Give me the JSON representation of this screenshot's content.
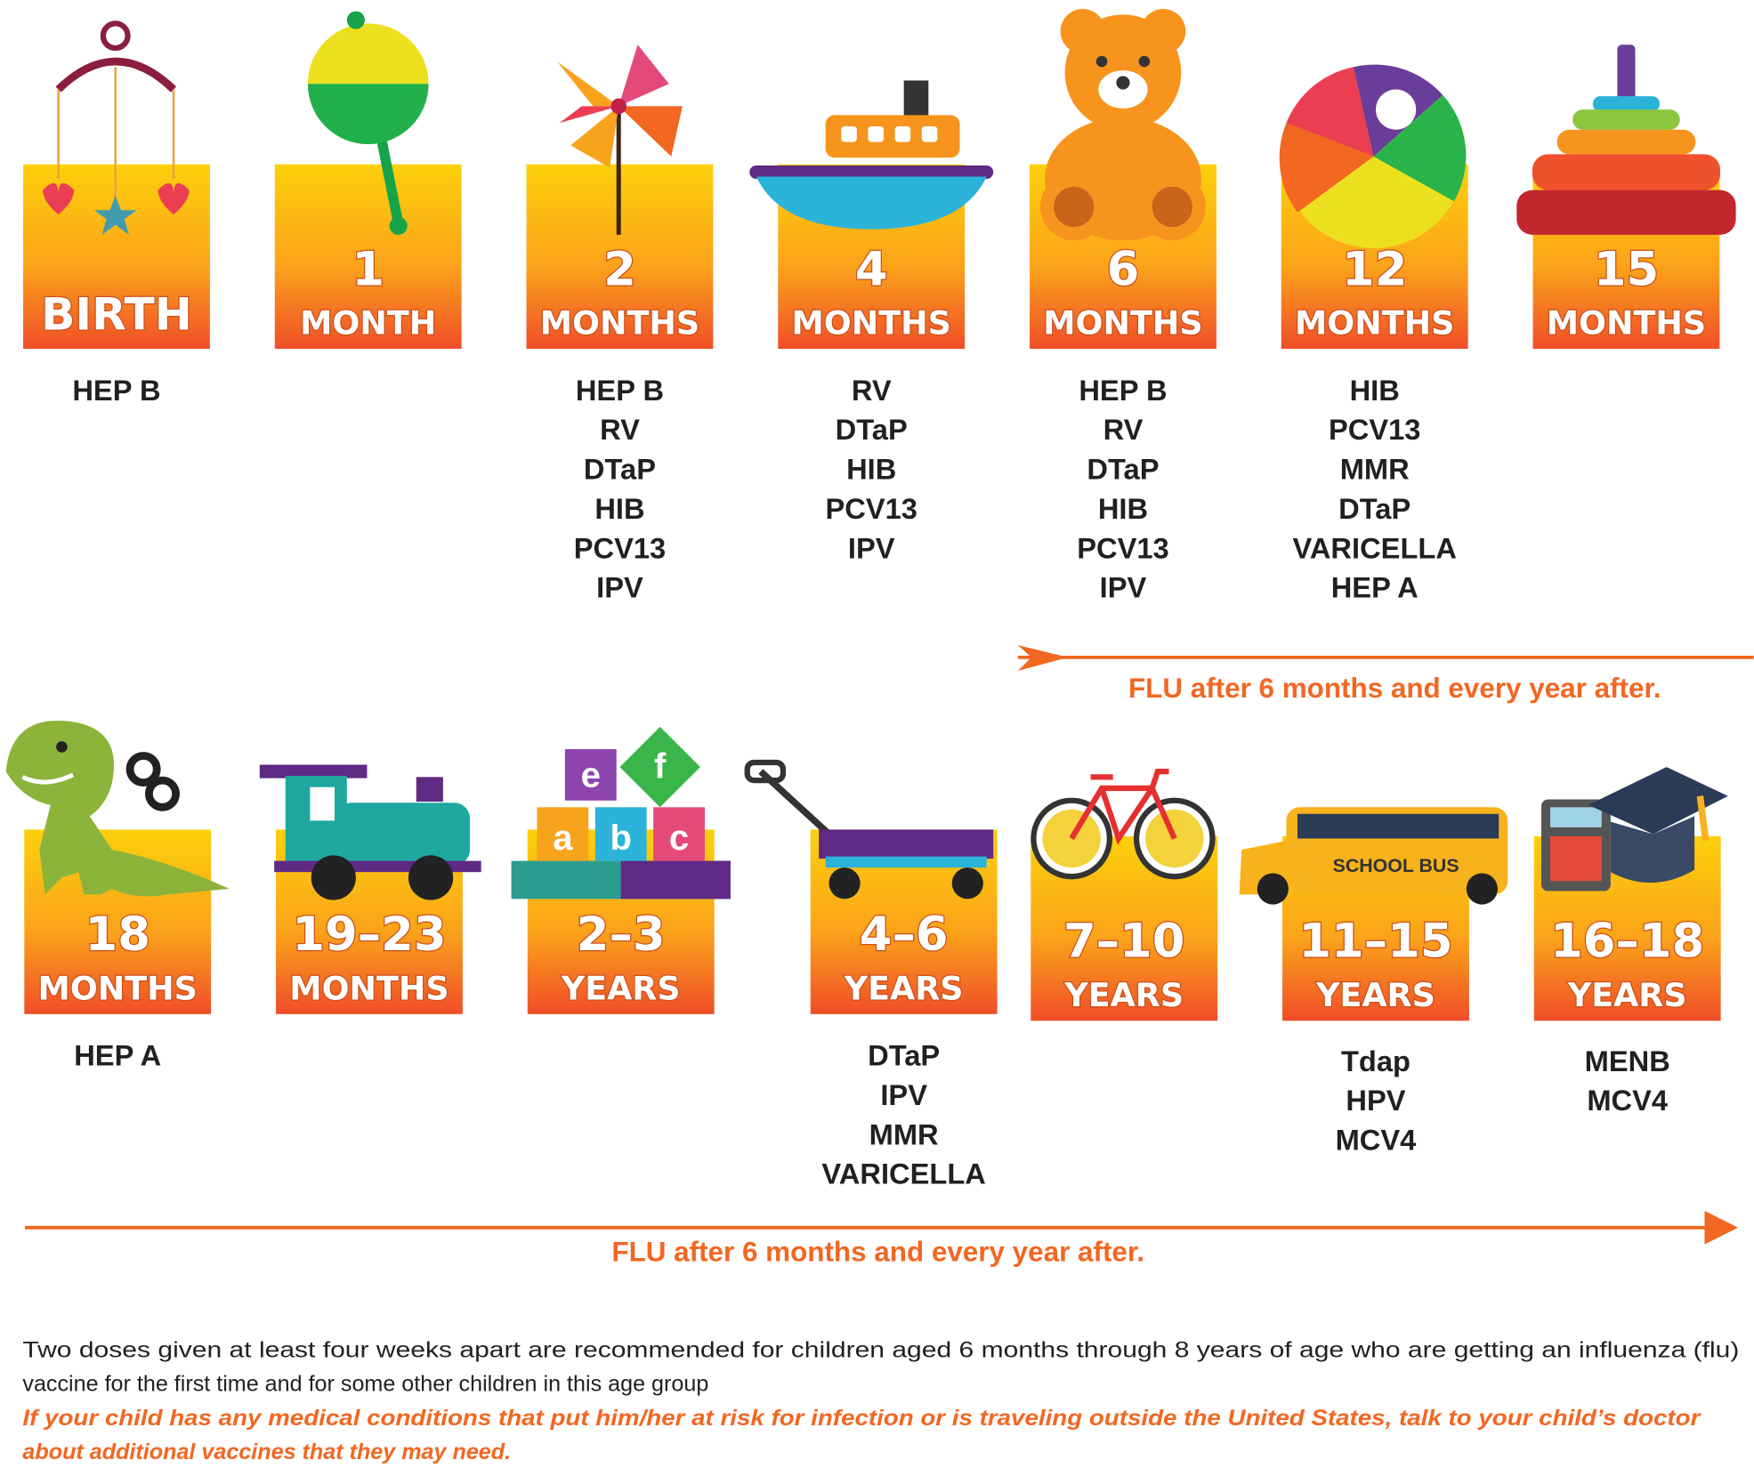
{
  "rows": [
    {
      "items": [
        {
          "age": [
            "BIRTH"
          ],
          "vaccines": [
            "HEP B"
          ]
        },
        {
          "age": [
            "1",
            "MONTH"
          ],
          "vaccines": []
        },
        {
          "age": [
            "2",
            "MONTHS"
          ],
          "vaccines": [
            "HEP B",
            "RV",
            "DTaP",
            "HIB",
            "PCV13",
            "IPV"
          ]
        },
        {
          "age": [
            "4",
            "MONTHS"
          ],
          "vaccines": [
            "RV",
            "DTaP",
            "HIB",
            "PCV13",
            "IPV"
          ]
        },
        {
          "age": [
            "6",
            "MONTHS"
          ],
          "vaccines": [
            "HEP B",
            "RV",
            "DTaP",
            "HIB",
            "PCV13",
            "IPV"
          ]
        },
        {
          "age": [
            "12",
            "MONTHS"
          ],
          "vaccines": [
            "HIB",
            "PCV13",
            "MMR",
            "DTaP",
            "VARICELLA",
            "HEP A"
          ]
        },
        {
          "age": [
            "15",
            "MONTHS"
          ],
          "vaccines": []
        }
      ]
    },
    {
      "items": [
        {
          "age": [
            "18",
            "MONTHS"
          ],
          "vaccines": [
            "HEP A"
          ]
        },
        {
          "age": [
            "19–23",
            "MONTHS"
          ],
          "vaccines": []
        },
        {
          "age": [
            "2–3",
            "YEARS"
          ],
          "vaccines": []
        },
        {
          "age": [
            "4–6",
            "YEARS"
          ],
          "vaccines": [
            "DTaP",
            "IPV",
            "MMR",
            "VARICELLA"
          ]
        },
        {
          "age": [
            "7–10",
            "YEARS"
          ],
          "vaccines": []
        },
        {
          "age": [
            "11–15",
            "YEARS"
          ],
          "vaccines": [
            "Tdap",
            "HPV",
            "MCV4"
          ]
        },
        {
          "age": [
            "16–18",
            "YEARS"
          ],
          "vaccines": [
            "MENB",
            "MCV4"
          ]
        }
      ]
    }
  ],
  "flu_notes": [
    "FLU after 6 months and every year after.",
    "FLU after 6 months and every year after."
  ],
  "icon_texts": {
    "blocks": [
      "e",
      "f",
      "a",
      "b",
      "c"
    ],
    "bus": "SCHOOL BUS"
  },
  "footnote": {
    "text": [
      "Two doses given at least four weeks apart are recommended for children aged 6 months through 8 years of age who are getting an influenza (flu)",
      "vaccine for the first time and for some other children in this age group"
    ],
    "warning": [
      "If your child has any medical conditions that put him/her at risk for infection or is traveling outside the United States, talk to your child’s doctor",
      "about additional vaccines that they may need."
    ]
  }
}
